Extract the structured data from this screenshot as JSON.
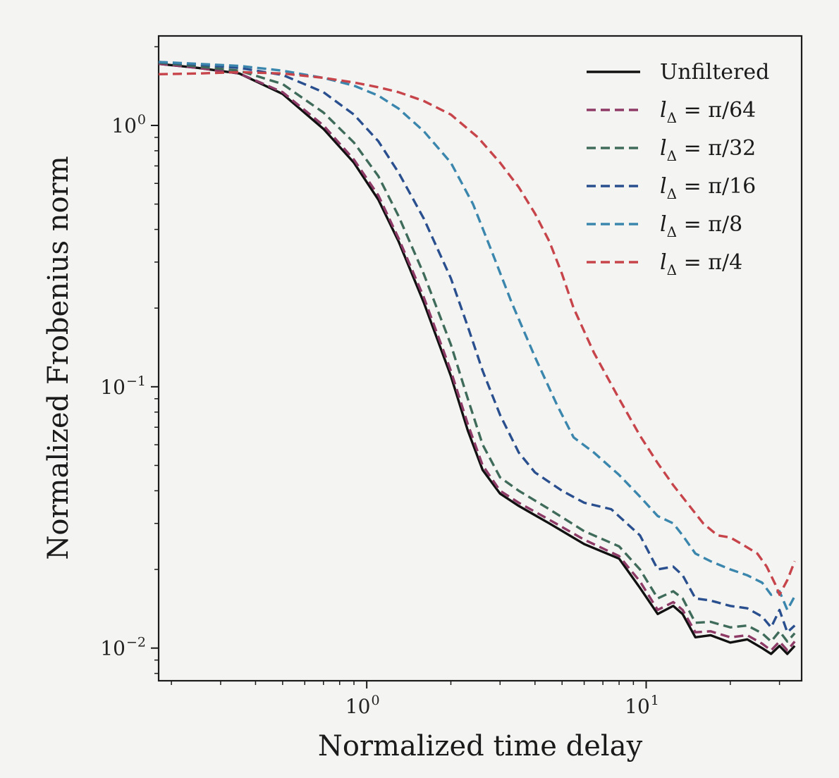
{
  "chart_data": {
    "type": "line",
    "xscale": "log",
    "yscale": "log",
    "xlim": [
      0.18,
      36
    ],
    "ylim": [
      0.0075,
      2.2
    ],
    "xlabel": "Normalized time delay",
    "ylabel": "Normalized Frobenius norm",
    "x_tick_labels": [
      {
        "value": 1,
        "base": "10",
        "exp": "0"
      },
      {
        "value": 10,
        "base": "10",
        "exp": "1"
      }
    ],
    "y_tick_labels": [
      {
        "value": 1,
        "base": "10",
        "exp": "0"
      },
      {
        "value": 0.1,
        "base": "10",
        "exp": "−1"
      },
      {
        "value": 0.01,
        "base": "10",
        "exp": "−2"
      }
    ],
    "legend_position": "top-right",
    "series": [
      {
        "name": "Unfiltered",
        "legend_label": "Unfiltered",
        "color": "#111111",
        "style": "solid",
        "points": [
          [
            0.18,
            1.72
          ],
          [
            0.25,
            1.66
          ],
          [
            0.35,
            1.58
          ],
          [
            0.5,
            1.32
          ],
          [
            0.7,
            0.97
          ],
          [
            0.9,
            0.72
          ],
          [
            1.1,
            0.52
          ],
          [
            1.3,
            0.36
          ],
          [
            1.6,
            0.21
          ],
          [
            2.0,
            0.11
          ],
          [
            2.3,
            0.068
          ],
          [
            2.6,
            0.048
          ],
          [
            3.0,
            0.039
          ],
          [
            3.5,
            0.035
          ],
          [
            4.5,
            0.03
          ],
          [
            6.0,
            0.025
          ],
          [
            8.0,
            0.022
          ],
          [
            9.5,
            0.017
          ],
          [
            11,
            0.0135
          ],
          [
            12.5,
            0.0145
          ],
          [
            13.5,
            0.0135
          ],
          [
            15,
            0.011
          ],
          [
            17,
            0.0112
          ],
          [
            20,
            0.0105
          ],
          [
            23,
            0.0108
          ],
          [
            26,
            0.01
          ],
          [
            28,
            0.0095
          ],
          [
            30,
            0.0102
          ],
          [
            32,
            0.0095
          ],
          [
            34,
            0.0102
          ]
        ]
      },
      {
        "name": "pi/64",
        "legend_label": "lΔ = π/64",
        "legend_lhs": "l",
        "legend_sub": "Δ",
        "legend_rhs": " = π/64",
        "color": "#8e3a66",
        "style": "dashed",
        "points": [
          [
            0.18,
            1.72
          ],
          [
            0.25,
            1.66
          ],
          [
            0.35,
            1.58
          ],
          [
            0.5,
            1.34
          ],
          [
            0.7,
            1.0
          ],
          [
            0.9,
            0.74
          ],
          [
            1.1,
            0.54
          ],
          [
            1.3,
            0.37
          ],
          [
            1.6,
            0.22
          ],
          [
            2.0,
            0.115
          ],
          [
            2.3,
            0.072
          ],
          [
            2.6,
            0.05
          ],
          [
            3.0,
            0.04
          ],
          [
            3.5,
            0.036
          ],
          [
            4.5,
            0.031
          ],
          [
            6.0,
            0.026
          ],
          [
            8.0,
            0.0225
          ],
          [
            9.5,
            0.018
          ],
          [
            11,
            0.014
          ],
          [
            12.5,
            0.015
          ],
          [
            13.5,
            0.014
          ],
          [
            15,
            0.0115
          ],
          [
            17,
            0.0116
          ],
          [
            20,
            0.011
          ],
          [
            23,
            0.0112
          ],
          [
            26,
            0.0104
          ],
          [
            28,
            0.0098
          ],
          [
            30,
            0.0106
          ],
          [
            32,
            0.0098
          ],
          [
            34,
            0.0106
          ]
        ]
      },
      {
        "name": "pi/32",
        "legend_label": "lΔ = π/32",
        "legend_lhs": "l",
        "legend_sub": "Δ",
        "legend_rhs": " = π/32",
        "color": "#3f6b5a",
        "style": "dashed",
        "points": [
          [
            0.18,
            1.74
          ],
          [
            0.25,
            1.68
          ],
          [
            0.35,
            1.62
          ],
          [
            0.5,
            1.44
          ],
          [
            0.7,
            1.12
          ],
          [
            0.9,
            0.86
          ],
          [
            1.1,
            0.64
          ],
          [
            1.3,
            0.45
          ],
          [
            1.6,
            0.27
          ],
          [
            2.0,
            0.145
          ],
          [
            2.3,
            0.09
          ],
          [
            2.6,
            0.06
          ],
          [
            3.0,
            0.045
          ],
          [
            3.5,
            0.04
          ],
          [
            4.5,
            0.034
          ],
          [
            6.0,
            0.028
          ],
          [
            8.0,
            0.0245
          ],
          [
            9.5,
            0.02
          ],
          [
            11,
            0.0155
          ],
          [
            12.5,
            0.0165
          ],
          [
            13.5,
            0.0155
          ],
          [
            15,
            0.0125
          ],
          [
            17,
            0.0126
          ],
          [
            20,
            0.012
          ],
          [
            23,
            0.0122
          ],
          [
            26,
            0.0114
          ],
          [
            28,
            0.0106
          ],
          [
            30,
            0.0116
          ],
          [
            32,
            0.0106
          ],
          [
            34,
            0.0114
          ]
        ]
      },
      {
        "name": "pi/16",
        "legend_label": "lΔ = π/16",
        "legend_lhs": "l",
        "legend_sub": "Δ",
        "legend_rhs": " = π/16",
        "color": "#2a4f8e",
        "style": "dashed",
        "points": [
          [
            0.18,
            1.75
          ],
          [
            0.25,
            1.71
          ],
          [
            0.35,
            1.66
          ],
          [
            0.5,
            1.56
          ],
          [
            0.7,
            1.34
          ],
          [
            0.9,
            1.1
          ],
          [
            1.1,
            0.87
          ],
          [
            1.3,
            0.66
          ],
          [
            1.6,
            0.44
          ],
          [
            2.0,
            0.26
          ],
          [
            2.3,
            0.17
          ],
          [
            2.6,
            0.115
          ],
          [
            3.0,
            0.078
          ],
          [
            3.5,
            0.056
          ],
          [
            4.0,
            0.047
          ],
          [
            5.0,
            0.04
          ],
          [
            6.0,
            0.036
          ],
          [
            7.5,
            0.034
          ],
          [
            9.5,
            0.027
          ],
          [
            11,
            0.02
          ],
          [
            12.5,
            0.0205
          ],
          [
            13.5,
            0.019
          ],
          [
            15,
            0.0155
          ],
          [
            17,
            0.0152
          ],
          [
            20,
            0.0145
          ],
          [
            23,
            0.0142
          ],
          [
            26,
            0.0132
          ],
          [
            28,
            0.012
          ],
          [
            30,
            0.014
          ],
          [
            32,
            0.0115
          ],
          [
            34,
            0.0122
          ]
        ]
      },
      {
        "name": "pi/8",
        "legend_label": "lΔ = π/8",
        "legend_lhs": "l",
        "legend_sub": "Δ",
        "legend_rhs": " = π/8",
        "color": "#3a86ad",
        "style": "dashed",
        "points": [
          [
            0.18,
            1.75
          ],
          [
            0.25,
            1.72
          ],
          [
            0.35,
            1.69
          ],
          [
            0.5,
            1.62
          ],
          [
            0.7,
            1.52
          ],
          [
            0.9,
            1.42
          ],
          [
            1.1,
            1.3
          ],
          [
            1.3,
            1.16
          ],
          [
            1.6,
            0.95
          ],
          [
            2.0,
            0.72
          ],
          [
            2.4,
            0.5
          ],
          [
            2.8,
            0.33
          ],
          [
            3.3,
            0.21
          ],
          [
            4.0,
            0.13
          ],
          [
            4.8,
            0.085
          ],
          [
            5.5,
            0.064
          ],
          [
            6.5,
            0.056
          ],
          [
            8.0,
            0.046
          ],
          [
            9.5,
            0.038
          ],
          [
            11,
            0.032
          ],
          [
            12.5,
            0.03
          ],
          [
            13.5,
            0.027
          ],
          [
            15,
            0.023
          ],
          [
            17,
            0.0215
          ],
          [
            20,
            0.02
          ],
          [
            23,
            0.019
          ],
          [
            26,
            0.0178
          ],
          [
            28,
            0.016
          ],
          [
            30,
            0.0165
          ],
          [
            32,
            0.014
          ],
          [
            34,
            0.0158
          ]
        ]
      },
      {
        "name": "pi/4",
        "legend_label": "lΔ = π/4",
        "legend_lhs": "l",
        "legend_sub": "Δ",
        "legend_rhs": " = π/4",
        "color": "#c6444a",
        "style": "dashed",
        "points": [
          [
            0.18,
            1.57
          ],
          [
            0.25,
            1.58
          ],
          [
            0.35,
            1.6
          ],
          [
            0.5,
            1.58
          ],
          [
            0.7,
            1.52
          ],
          [
            0.9,
            1.46
          ],
          [
            1.1,
            1.4
          ],
          [
            1.3,
            1.34
          ],
          [
            1.6,
            1.24
          ],
          [
            2.0,
            1.1
          ],
          [
            2.5,
            0.9
          ],
          [
            3.0,
            0.72
          ],
          [
            3.5,
            0.58
          ],
          [
            4.0,
            0.46
          ],
          [
            4.5,
            0.36
          ],
          [
            5.0,
            0.27
          ],
          [
            5.5,
            0.2
          ],
          [
            6.5,
            0.135
          ],
          [
            8.0,
            0.09
          ],
          [
            9.5,
            0.065
          ],
          [
            11,
            0.051
          ],
          [
            12.5,
            0.042
          ],
          [
            14,
            0.036
          ],
          [
            16,
            0.03
          ],
          [
            18,
            0.027
          ],
          [
            20,
            0.0265
          ],
          [
            22,
            0.025
          ],
          [
            25,
            0.023
          ],
          [
            27,
            0.0205
          ],
          [
            29,
            0.0175
          ],
          [
            30,
            0.016
          ],
          [
            32,
            0.0182
          ],
          [
            34,
            0.0215
          ]
        ]
      }
    ]
  }
}
